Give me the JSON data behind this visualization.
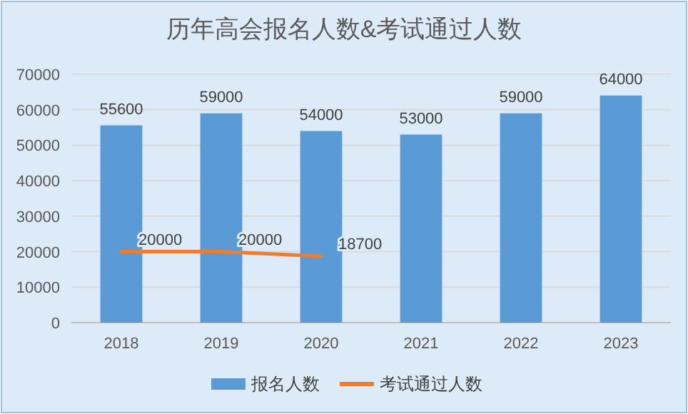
{
  "chart_data": {
    "type": "bar",
    "title": "历年高会报名人数&考试通过人数",
    "categories": [
      "2018",
      "2019",
      "2020",
      "2021",
      "2022",
      "2023"
    ],
    "series": [
      {
        "name": "报名人数",
        "color": "#5b9bd5",
        "values": [
          55600,
          59000,
          54000,
          53000,
          59000,
          64000
        ]
      },
      {
        "name": "考试通过人数",
        "type": "line",
        "color": "#ed7d31",
        "values": [
          20000,
          20000,
          18700,
          null,
          null,
          null
        ]
      }
    ],
    "ylim": [
      0,
      70000
    ],
    "yticks": [
      0,
      10000,
      20000,
      30000,
      40000,
      50000,
      60000,
      70000
    ],
    "grid": "y",
    "legend": "bottom",
    "data_labels": true,
    "marker": "none",
    "line_style": "solid"
  }
}
